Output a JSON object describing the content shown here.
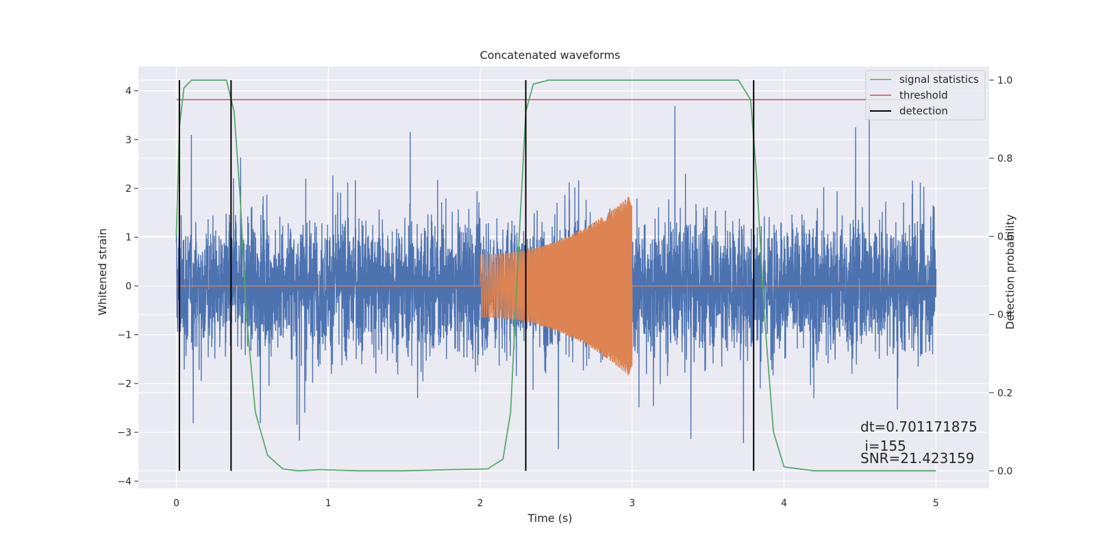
{
  "chart_data": {
    "type": "line",
    "title": "Concatenated waveforms",
    "xlabel": "Time (s)",
    "ylabel": "Whitened strain",
    "ylabel_right": "Detection probability",
    "xlim": [
      -0.25,
      5.35
    ],
    "ylim": [
      -4.15,
      4.5
    ],
    "ylim_right": [
      -0.045,
      1.035
    ],
    "xticks": [
      0,
      1,
      2,
      3,
      4,
      5
    ],
    "yticks": [
      -4,
      -3,
      -2,
      -1,
      0,
      1,
      2,
      3,
      4
    ],
    "yticks_right": [
      0.0,
      0.2,
      0.4,
      0.6,
      0.8,
      1.0
    ],
    "ytick_labels_right": [
      "0.0",
      "0.2",
      "0.4",
      "0.6",
      "0.8",
      "1.0"
    ],
    "grid": true,
    "legend_position": "top-right",
    "series": [
      {
        "name": "",
        "color": "#4c72b0",
        "role": "noisy strain",
        "x_range": [
          0,
          5
        ],
        "amplitude_typical": 1.4,
        "amplitude_peak": 4.1
      },
      {
        "name": "",
        "color": "#dd8452",
        "role": "injected chirp",
        "x_range": [
          2,
          3
        ],
        "amplitude_start": 0.65,
        "amplitude_end": 1.9
      },
      {
        "name": "signal statistics",
        "color": "#55a868",
        "axis": "right",
        "x": [
          0,
          0.02,
          0.05,
          0.1,
          0.2,
          0.33,
          0.38,
          0.42,
          0.46,
          0.52,
          0.6,
          0.7,
          0.8,
          0.95,
          1.2,
          1.5,
          1.8,
          2.05,
          2.15,
          2.2,
          2.25,
          2.3,
          2.35,
          2.45,
          3.0,
          3.7,
          3.78,
          3.82,
          3.87,
          3.93,
          4.0,
          4.2,
          4.5,
          5.0
        ],
        "y": [
          0.6,
          0.88,
          0.98,
          1.0,
          1.0,
          1.0,
          0.92,
          0.7,
          0.4,
          0.15,
          0.04,
          0.005,
          0.0,
          0.003,
          0.0,
          0.0,
          0.003,
          0.005,
          0.03,
          0.15,
          0.55,
          0.92,
          0.99,
          1.0,
          1.0,
          1.0,
          0.95,
          0.75,
          0.4,
          0.1,
          0.01,
          0.0,
          0.0,
          0.0
        ]
      },
      {
        "name": "threshold",
        "color": "#c44e52",
        "axis": "right",
        "x": [
          0,
          5
        ],
        "y": [
          0.95,
          0.95
        ]
      },
      {
        "name": "detection",
        "color": "#000000",
        "axis": "right",
        "lines_x": [
          0.02,
          0.36,
          2.3,
          3.8
        ],
        "y_range": [
          0.0,
          1.0
        ]
      }
    ],
    "annotations": [
      "dt=0.701171875",
      " i=155",
      "SNR=21.423159"
    ]
  }
}
